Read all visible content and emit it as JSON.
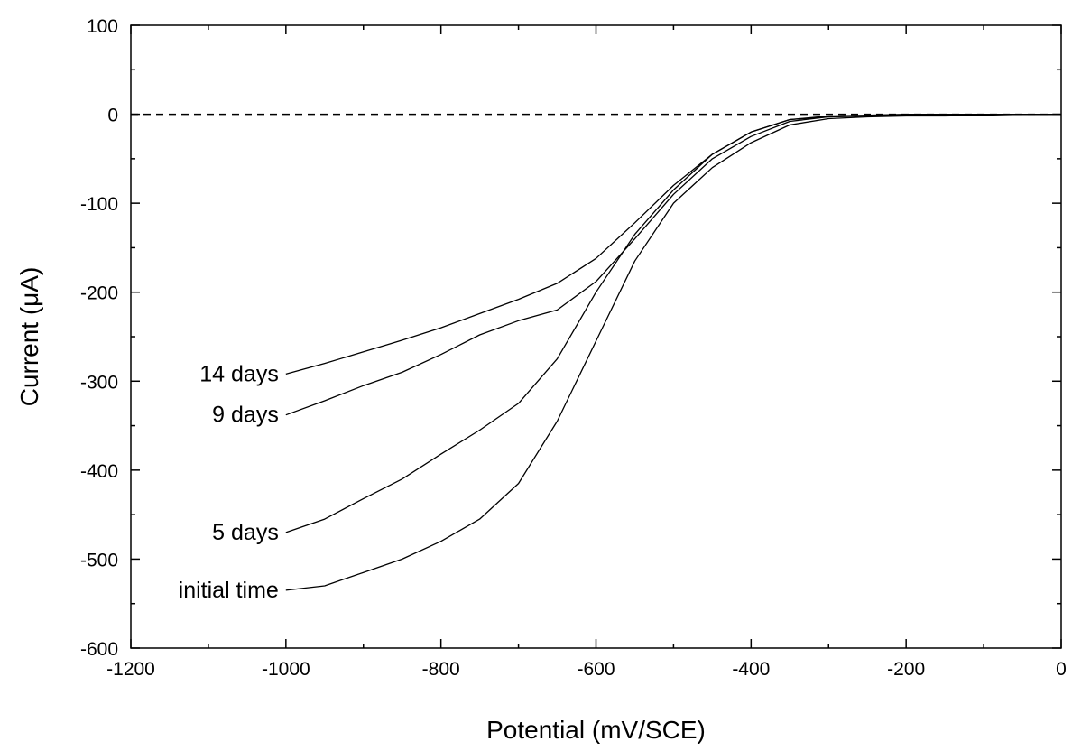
{
  "chart_data": {
    "type": "line",
    "title": "",
    "xlabel": "Potential (mV/SCE)",
    "ylabel": "Current (μA)",
    "xlim": [
      -1200,
      0
    ],
    "ylim": [
      -600,
      100
    ],
    "xticks": [
      -1200,
      -1000,
      -800,
      -600,
      -400,
      -200,
      0
    ],
    "yticks": [
      100,
      0,
      -100,
      -200,
      -300,
      -400,
      -500,
      -600
    ],
    "xtick_labels": [
      "-1200",
      "-1000",
      "-800",
      "-600",
      "-400",
      "-200",
      "0"
    ],
    "ytick_labels": [
      "100",
      "0",
      "-100",
      "-200",
      "-300",
      "-400",
      "-500",
      "-600"
    ],
    "grid": false,
    "zero_reference_line": {
      "y": 0,
      "style": "dashed"
    },
    "series": [
      {
        "name": "14 days",
        "x": [
          -1000,
          -950,
          -900,
          -850,
          -800,
          -750,
          -700,
          -650,
          -600,
          -550,
          -500,
          -450,
          -400,
          -350,
          -300,
          -250,
          -200,
          -150,
          -100,
          -50,
          0
        ],
        "y": [
          -292,
          -280,
          -267,
          -254,
          -240,
          -224,
          -208,
          -190,
          -162,
          -122,
          -80,
          -45,
          -20,
          -6,
          -2,
          -1,
          0,
          0,
          0,
          0,
          0
        ]
      },
      {
        "name": "9 days",
        "x": [
          -1000,
          -950,
          -900,
          -850,
          -800,
          -750,
          -700,
          -650,
          -600,
          -550,
          -500,
          -450,
          -400,
          -350,
          -300,
          -250,
          -200,
          -150,
          -100,
          -50,
          0
        ],
        "y": [
          -338,
          -322,
          -305,
          -290,
          -270,
          -248,
          -232,
          -220,
          -188,
          -140,
          -90,
          -50,
          -25,
          -8,
          -3,
          -2,
          -1,
          -1,
          0,
          0,
          0
        ]
      },
      {
        "name": "5 days",
        "x": [
          -1000,
          -950,
          -900,
          -850,
          -800,
          -750,
          -700,
          -650,
          -600,
          -550,
          -500,
          -450,
          -400,
          -350,
          -300,
          -250,
          -200,
          -150,
          -100,
          -50,
          0
        ],
        "y": [
          -470,
          -455,
          -432,
          -410,
          -382,
          -355,
          -325,
          -275,
          -200,
          -135,
          -85,
          -45,
          -20,
          -6,
          -3,
          -2,
          -1,
          -1,
          0,
          0,
          0
        ]
      },
      {
        "name": "initial time",
        "x": [
          -1000,
          -950,
          -900,
          -850,
          -800,
          -750,
          -700,
          -650,
          -600,
          -550,
          -500,
          -450,
          -400,
          -350,
          -300,
          -250,
          -200,
          -150,
          -100,
          -50,
          0
        ],
        "y": [
          -535,
          -530,
          -515,
          -500,
          -480,
          -455,
          -415,
          -345,
          -255,
          -165,
          -100,
          -60,
          -32,
          -12,
          -5,
          -3,
          -2,
          -2,
          -1,
          0,
          0
        ]
      }
    ]
  }
}
